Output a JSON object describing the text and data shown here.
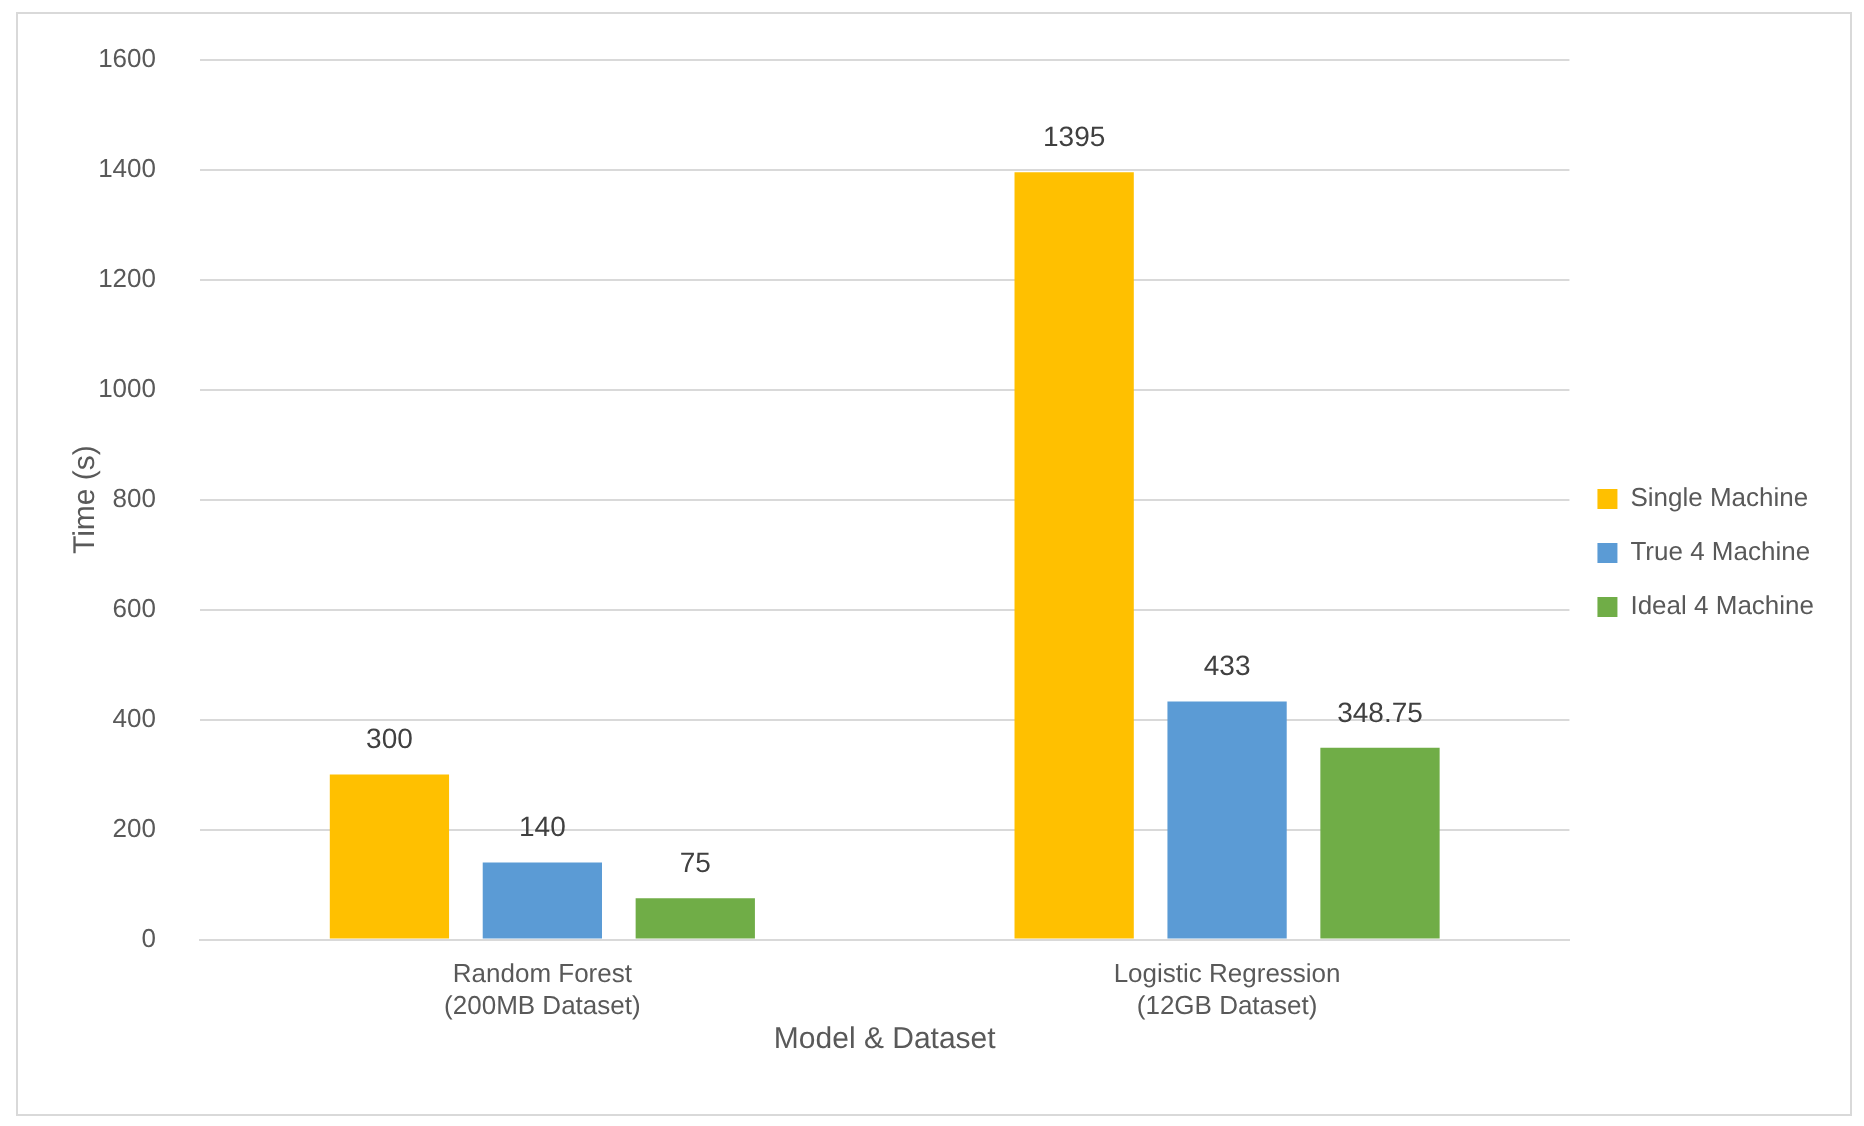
{
  "chart_data": {
    "type": "bar",
    "xlabel": "Model & Dataset",
    "ylabel": "Time (s)",
    "categories": [
      "Random Forest\n(200MB Dataset)",
      "Logistic Regression\n(12GB Dataset)"
    ],
    "series": [
      {
        "name": "Single Machine",
        "color": "#ffc000",
        "values": [
          300,
          1395
        ]
      },
      {
        "name": "True 4 Machine",
        "color": "#5b9bd5",
        "values": [
          140,
          433
        ]
      },
      {
        "name": "Ideal 4 Machine",
        "color": "#70ad47",
        "values": [
          75,
          348.75
        ]
      }
    ],
    "ylim": [
      0,
      1600
    ],
    "yticks": [
      0,
      200,
      400,
      600,
      800,
      1000,
      1200,
      1400,
      1600
    ],
    "grid": "y",
    "legend": "right",
    "data_labels": true
  }
}
